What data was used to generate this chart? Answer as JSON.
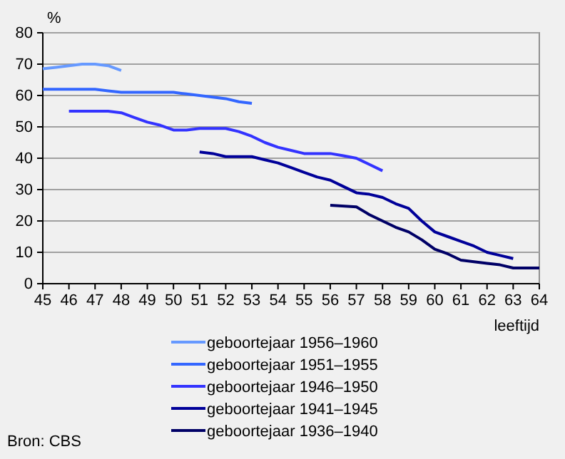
{
  "chart_data": {
    "type": "line",
    "ylabel": "%",
    "xlabel": "leeftijd",
    "annotations": [
      "Bron: CBS"
    ],
    "xlim": [
      45,
      64
    ],
    "xticks": [
      45,
      46,
      47,
      48,
      49,
      50,
      51,
      52,
      53,
      54,
      55,
      56,
      57,
      58,
      59,
      60,
      61,
      62,
      63,
      64
    ],
    "ylim": [
      0,
      80
    ],
    "yticks": [
      0,
      10,
      20,
      30,
      40,
      50,
      60,
      70,
      80
    ],
    "grid": "y",
    "legend": "bottom",
    "marker": "none",
    "line_style": "solid",
    "series": [
      {
        "name": "geboortejaar 1956–1960",
        "color": "#6699ff",
        "x": [
          45,
          45.5,
          46,
          46.5,
          47,
          47.5,
          48
        ],
        "values": [
          68.5,
          69,
          69.5,
          70,
          70,
          69.5,
          68
        ]
      },
      {
        "name": "geboortejaar 1951–1955",
        "color": "#3366ff",
        "x": [
          45,
          46,
          47,
          47.5,
          48,
          49,
          50,
          50.5,
          51,
          52,
          52.5,
          53
        ],
        "values": [
          62,
          62,
          62,
          61.5,
          61,
          61,
          61,
          60.5,
          60,
          59,
          58,
          57.5
        ]
      },
      {
        "name": "geboortejaar 1946–1950",
        "color": "#3333ff",
        "x": [
          46,
          47,
          47.5,
          48,
          48.5,
          49,
          49.5,
          50,
          50.5,
          51,
          52,
          52.5,
          53,
          53.5,
          54,
          54.5,
          55,
          56,
          56.5,
          57,
          57.5,
          58
        ],
        "values": [
          55,
          55,
          55,
          54.5,
          53,
          51.5,
          50.5,
          49,
          49,
          49.5,
          49.5,
          48.5,
          47,
          45,
          43.5,
          42.5,
          41.5,
          41.5,
          40.8,
          40,
          38,
          36
        ]
      },
      {
        "name": "geboortejaar 1941–1945",
        "color": "#000099",
        "x": [
          51,
          51.5,
          52,
          52.5,
          53,
          53.5,
          54,
          54.5,
          55,
          55.5,
          56,
          56.5,
          57,
          57.5,
          58,
          58.5,
          59,
          59.5,
          60,
          60.5,
          61,
          61.5,
          62,
          62.5,
          63
        ],
        "values": [
          42,
          41.5,
          40.5,
          40.5,
          40.5,
          39.5,
          38.5,
          37,
          35.5,
          34,
          33,
          31,
          29,
          28.5,
          27.5,
          25.5,
          24,
          20,
          16.5,
          15,
          13.5,
          12,
          10,
          9,
          8
        ]
      },
      {
        "name": "geboortejaar 1936–1940",
        "color": "#000066",
        "x": [
          56,
          57,
          57.5,
          58,
          58.5,
          59,
          59.5,
          60,
          60.5,
          61,
          62,
          62.5,
          63,
          63.5,
          64
        ],
        "values": [
          25,
          24.5,
          22,
          20,
          18,
          16.5,
          14,
          11,
          9.5,
          7.5,
          6.5,
          6,
          5,
          5,
          5
        ]
      }
    ]
  }
}
